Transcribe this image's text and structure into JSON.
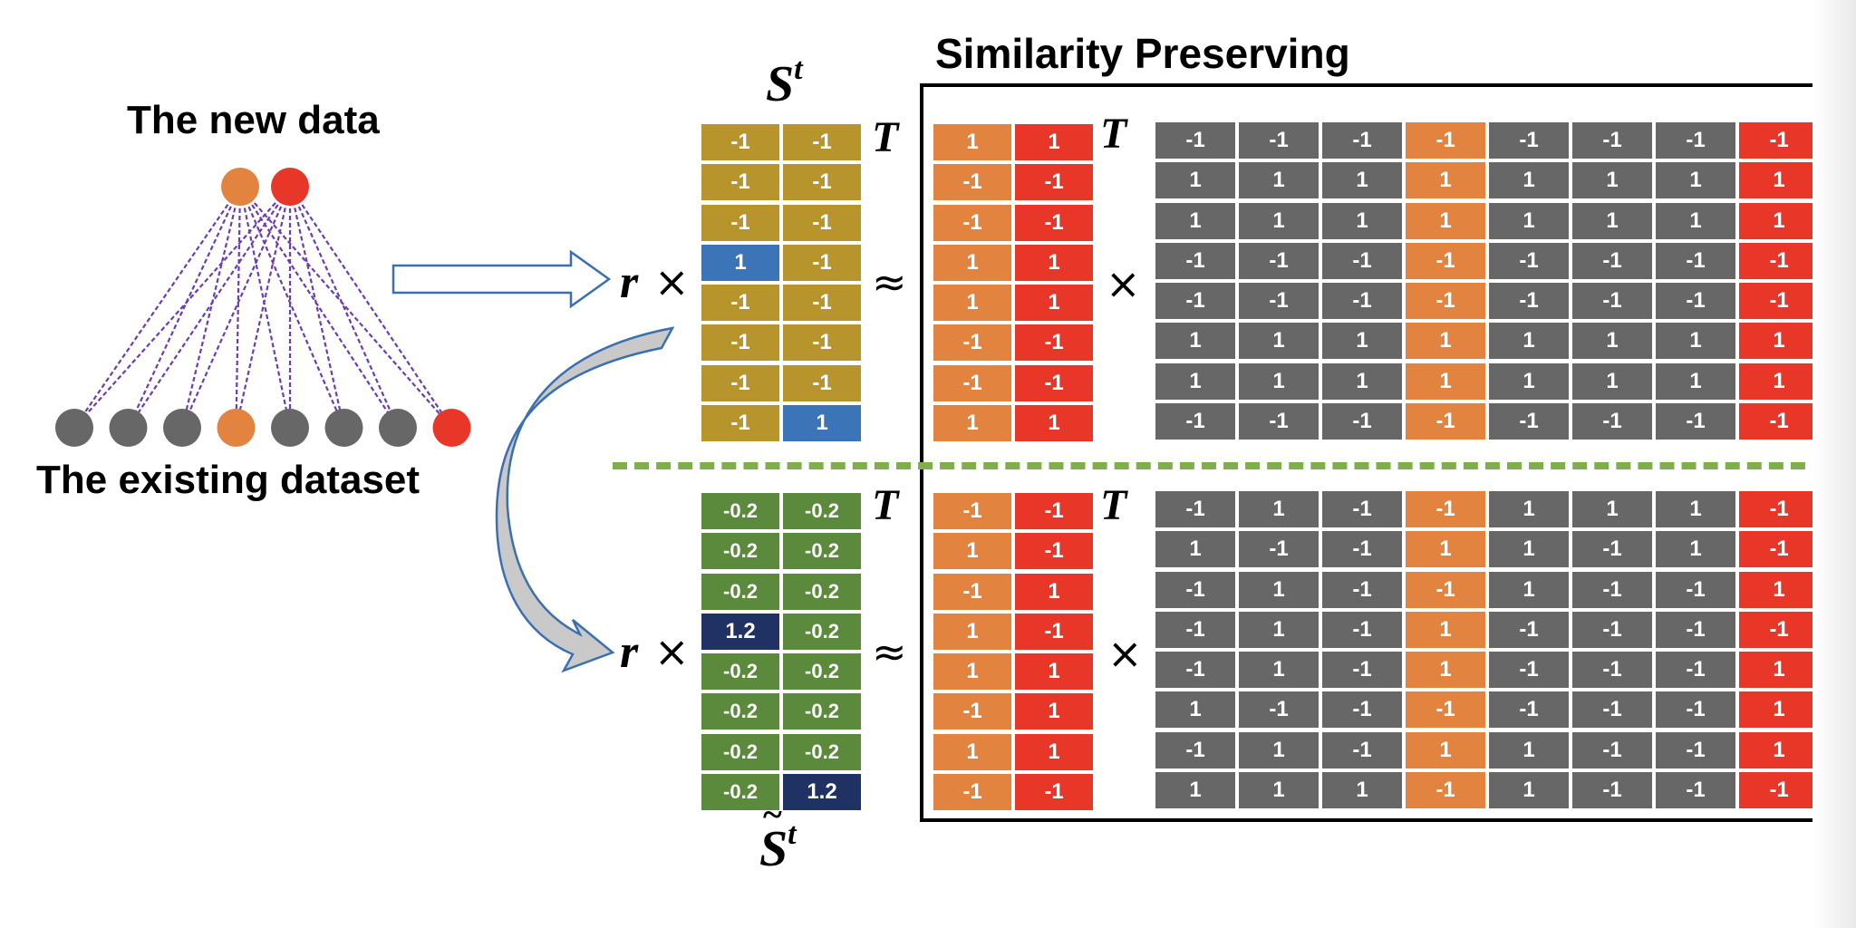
{
  "labels": {
    "new_data": "The new data",
    "existing_dataset": "The existing dataset",
    "similarity_preserving": "Similarity Preserving",
    "s_symbol": "S",
    "s_superscript": "t",
    "s_tilde_symbol": "S",
    "s_tilde_superscript": "t",
    "tilde": "~",
    "transpose": "T",
    "r": "r",
    "times": "×",
    "approx": "≈"
  },
  "colors": {
    "gold": "#b8952c",
    "blue": "#3b75b8",
    "green": "#5b8a3c",
    "navy": "#1f3263",
    "orange": "#e2833f",
    "red": "#e83628",
    "gray": "#676767",
    "purple_edge": "#6a3db0",
    "divider": "#7fae4a",
    "arrow": "#3b6fb0"
  },
  "graph": {
    "top_nodes": [
      "orange",
      "red"
    ],
    "bottom_nodes": [
      "gray",
      "gray",
      "gray",
      "orange",
      "gray",
      "gray",
      "gray",
      "red"
    ]
  },
  "top_section": {
    "s_matrix": [
      [
        "-1",
        "-1"
      ],
      [
        "-1",
        "-1"
      ],
      [
        "-1",
        "-1"
      ],
      [
        "1",
        "-1"
      ],
      [
        "-1",
        "-1"
      ],
      [
        "-1",
        "-1"
      ],
      [
        "-1",
        "-1"
      ],
      [
        "-1",
        "1"
      ]
    ],
    "s_colors": [
      [
        "gold",
        "gold"
      ],
      [
        "gold",
        "gold"
      ],
      [
        "gold",
        "gold"
      ],
      [
        "blue",
        "gold"
      ],
      [
        "gold",
        "gold"
      ],
      [
        "gold",
        "gold"
      ],
      [
        "gold",
        "gold"
      ],
      [
        "gold",
        "blue"
      ]
    ],
    "new_codes": [
      [
        "1",
        "1"
      ],
      [
        "-1",
        "-1"
      ],
      [
        "-1",
        "-1"
      ],
      [
        "1",
        "1"
      ],
      [
        "1",
        "1"
      ],
      [
        "-1",
        "-1"
      ],
      [
        "-1",
        "-1"
      ],
      [
        "1",
        "1"
      ]
    ],
    "existing_codes": [
      [
        "-1",
        "-1",
        "-1",
        "-1",
        "-1",
        "-1",
        "-1",
        "-1"
      ],
      [
        "1",
        "1",
        "1",
        "1",
        "1",
        "1",
        "1",
        "1"
      ],
      [
        "1",
        "1",
        "1",
        "1",
        "1",
        "1",
        "1",
        "1"
      ],
      [
        "-1",
        "-1",
        "-1",
        "-1",
        "-1",
        "-1",
        "-1",
        "-1"
      ],
      [
        "-1",
        "-1",
        "-1",
        "-1",
        "-1",
        "-1",
        "-1",
        "-1"
      ],
      [
        "1",
        "1",
        "1",
        "1",
        "1",
        "1",
        "1",
        "1"
      ],
      [
        "1",
        "1",
        "1",
        "1",
        "1",
        "1",
        "1",
        "1"
      ],
      [
        "-1",
        "-1",
        "-1",
        "-1",
        "-1",
        "-1",
        "-1",
        "-1"
      ]
    ]
  },
  "bottom_section": {
    "s_matrix": [
      [
        "-0.2",
        "-0.2"
      ],
      [
        "-0.2",
        "-0.2"
      ],
      [
        "-0.2",
        "-0.2"
      ],
      [
        "1.2",
        "-0.2"
      ],
      [
        "-0.2",
        "-0.2"
      ],
      [
        "-0.2",
        "-0.2"
      ],
      [
        "-0.2",
        "-0.2"
      ],
      [
        "-0.2",
        "1.2"
      ]
    ],
    "s_colors": [
      [
        "green",
        "green"
      ],
      [
        "green",
        "green"
      ],
      [
        "green",
        "green"
      ],
      [
        "navy",
        "green"
      ],
      [
        "green",
        "green"
      ],
      [
        "green",
        "green"
      ],
      [
        "green",
        "green"
      ],
      [
        "green",
        "navy"
      ]
    ],
    "new_codes": [
      [
        "-1",
        "-1"
      ],
      [
        "1",
        "-1"
      ],
      [
        "-1",
        "1"
      ],
      [
        "1",
        "-1"
      ],
      [
        "1",
        "1"
      ],
      [
        "-1",
        "1"
      ],
      [
        "1",
        "1"
      ],
      [
        "-1",
        "-1"
      ]
    ],
    "existing_codes": [
      [
        "-1",
        "1",
        "-1",
        "-1",
        "1",
        "1",
        "1",
        "-1"
      ],
      [
        "1",
        "-1",
        "-1",
        "1",
        "1",
        "-1",
        "1",
        "-1"
      ],
      [
        "-1",
        "1",
        "-1",
        "-1",
        "1",
        "-1",
        "-1",
        "1"
      ],
      [
        "-1",
        "1",
        "-1",
        "1",
        "-1",
        "-1",
        "-1",
        "-1"
      ],
      [
        "-1",
        "1",
        "-1",
        "1",
        "-1",
        "-1",
        "-1",
        "1"
      ],
      [
        "1",
        "-1",
        "-1",
        "-1",
        "-1",
        "-1",
        "-1",
        "1"
      ],
      [
        "-1",
        "1",
        "-1",
        "1",
        "1",
        "-1",
        "-1",
        "1"
      ],
      [
        "1",
        "1",
        "1",
        "-1",
        "1",
        "-1",
        "-1",
        "-1"
      ]
    ]
  }
}
